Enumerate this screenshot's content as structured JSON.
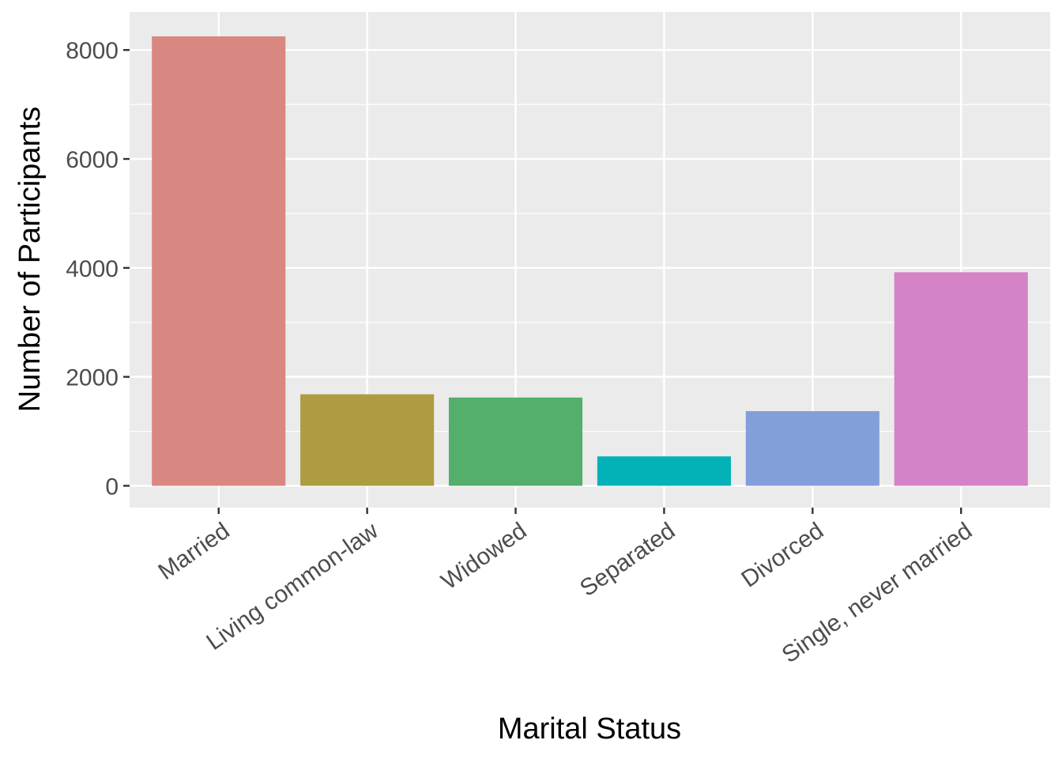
{
  "chart_data": {
    "type": "bar",
    "title": "",
    "xlabel": "Marital Status",
    "ylabel": "Number of Participants",
    "categories": [
      "Married",
      "Living common-law",
      "Widowed",
      "Separated",
      "Divorced",
      "Single, never married"
    ],
    "values": [
      8250,
      1680,
      1620,
      540,
      1370,
      3920
    ],
    "colors": [
      "#d98781",
      "#ad9c41",
      "#54ae6c",
      "#02b2b7",
      "#839fdb",
      "#d383c6"
    ],
    "ylim": [
      -400,
      8700
    ],
    "y_ticks": [
      0,
      2000,
      4000,
      6000,
      8000
    ],
    "y_tick_labels": [
      "0",
      "2000",
      "4000",
      "6000",
      "8000"
    ],
    "grid": true,
    "legend": "none",
    "panel_background": "#ebebeb",
    "grid_color": "#ffffff"
  }
}
